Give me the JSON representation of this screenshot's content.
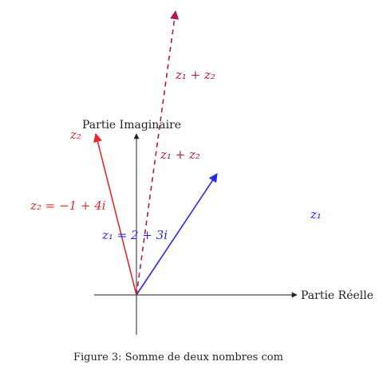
{
  "figure": {
    "caption": "Figure 3: Somme de deux nombres com",
    "axes": {
      "x_label": "Partie Réelle",
      "y_label": "Partie Imaginaire"
    },
    "vectors": {
      "z1": {
        "re": 2,
        "im": 3,
        "label": "z₁ = 2 + 3i",
        "color": "#2a2ae6"
      },
      "z2": {
        "re": -1,
        "im": 4,
        "label": "z₂ = −1 + 4i",
        "color": "#e62a2a"
      },
      "sum": {
        "re": 1,
        "im": 7,
        "label": "z₁ + z₂",
        "color": "#b5174e"
      }
    },
    "labels": {
      "z2_tip": "z₂",
      "z1_far": "z₁",
      "sum_mid": "z₁ + z₂",
      "sum_tip": "z₁ + z₂"
    }
  }
}
